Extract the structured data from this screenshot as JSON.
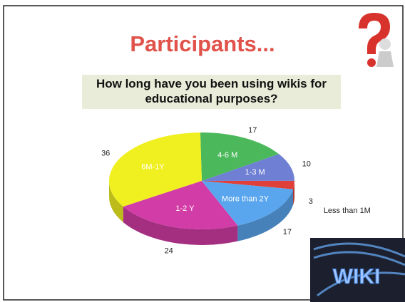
{
  "chart_data": {
    "type": "pie3d",
    "title": "Participants...",
    "subtitle": "How long have you been using wikis for educational purposes?",
    "categories": [
      "Less than 1M",
      "1-3 M",
      "4-6 M",
      "6M-1Y",
      "1-2 Y",
      "More than 2Y"
    ],
    "values": [
      3,
      10,
      17,
      36,
      24,
      17
    ],
    "colors": [
      "#e0403a",
      "#6f7fd4",
      "#4cb85c",
      "#f0f020",
      "#d23ca6",
      "#5aa6ee"
    ]
  },
  "logo_text": "WIKI"
}
